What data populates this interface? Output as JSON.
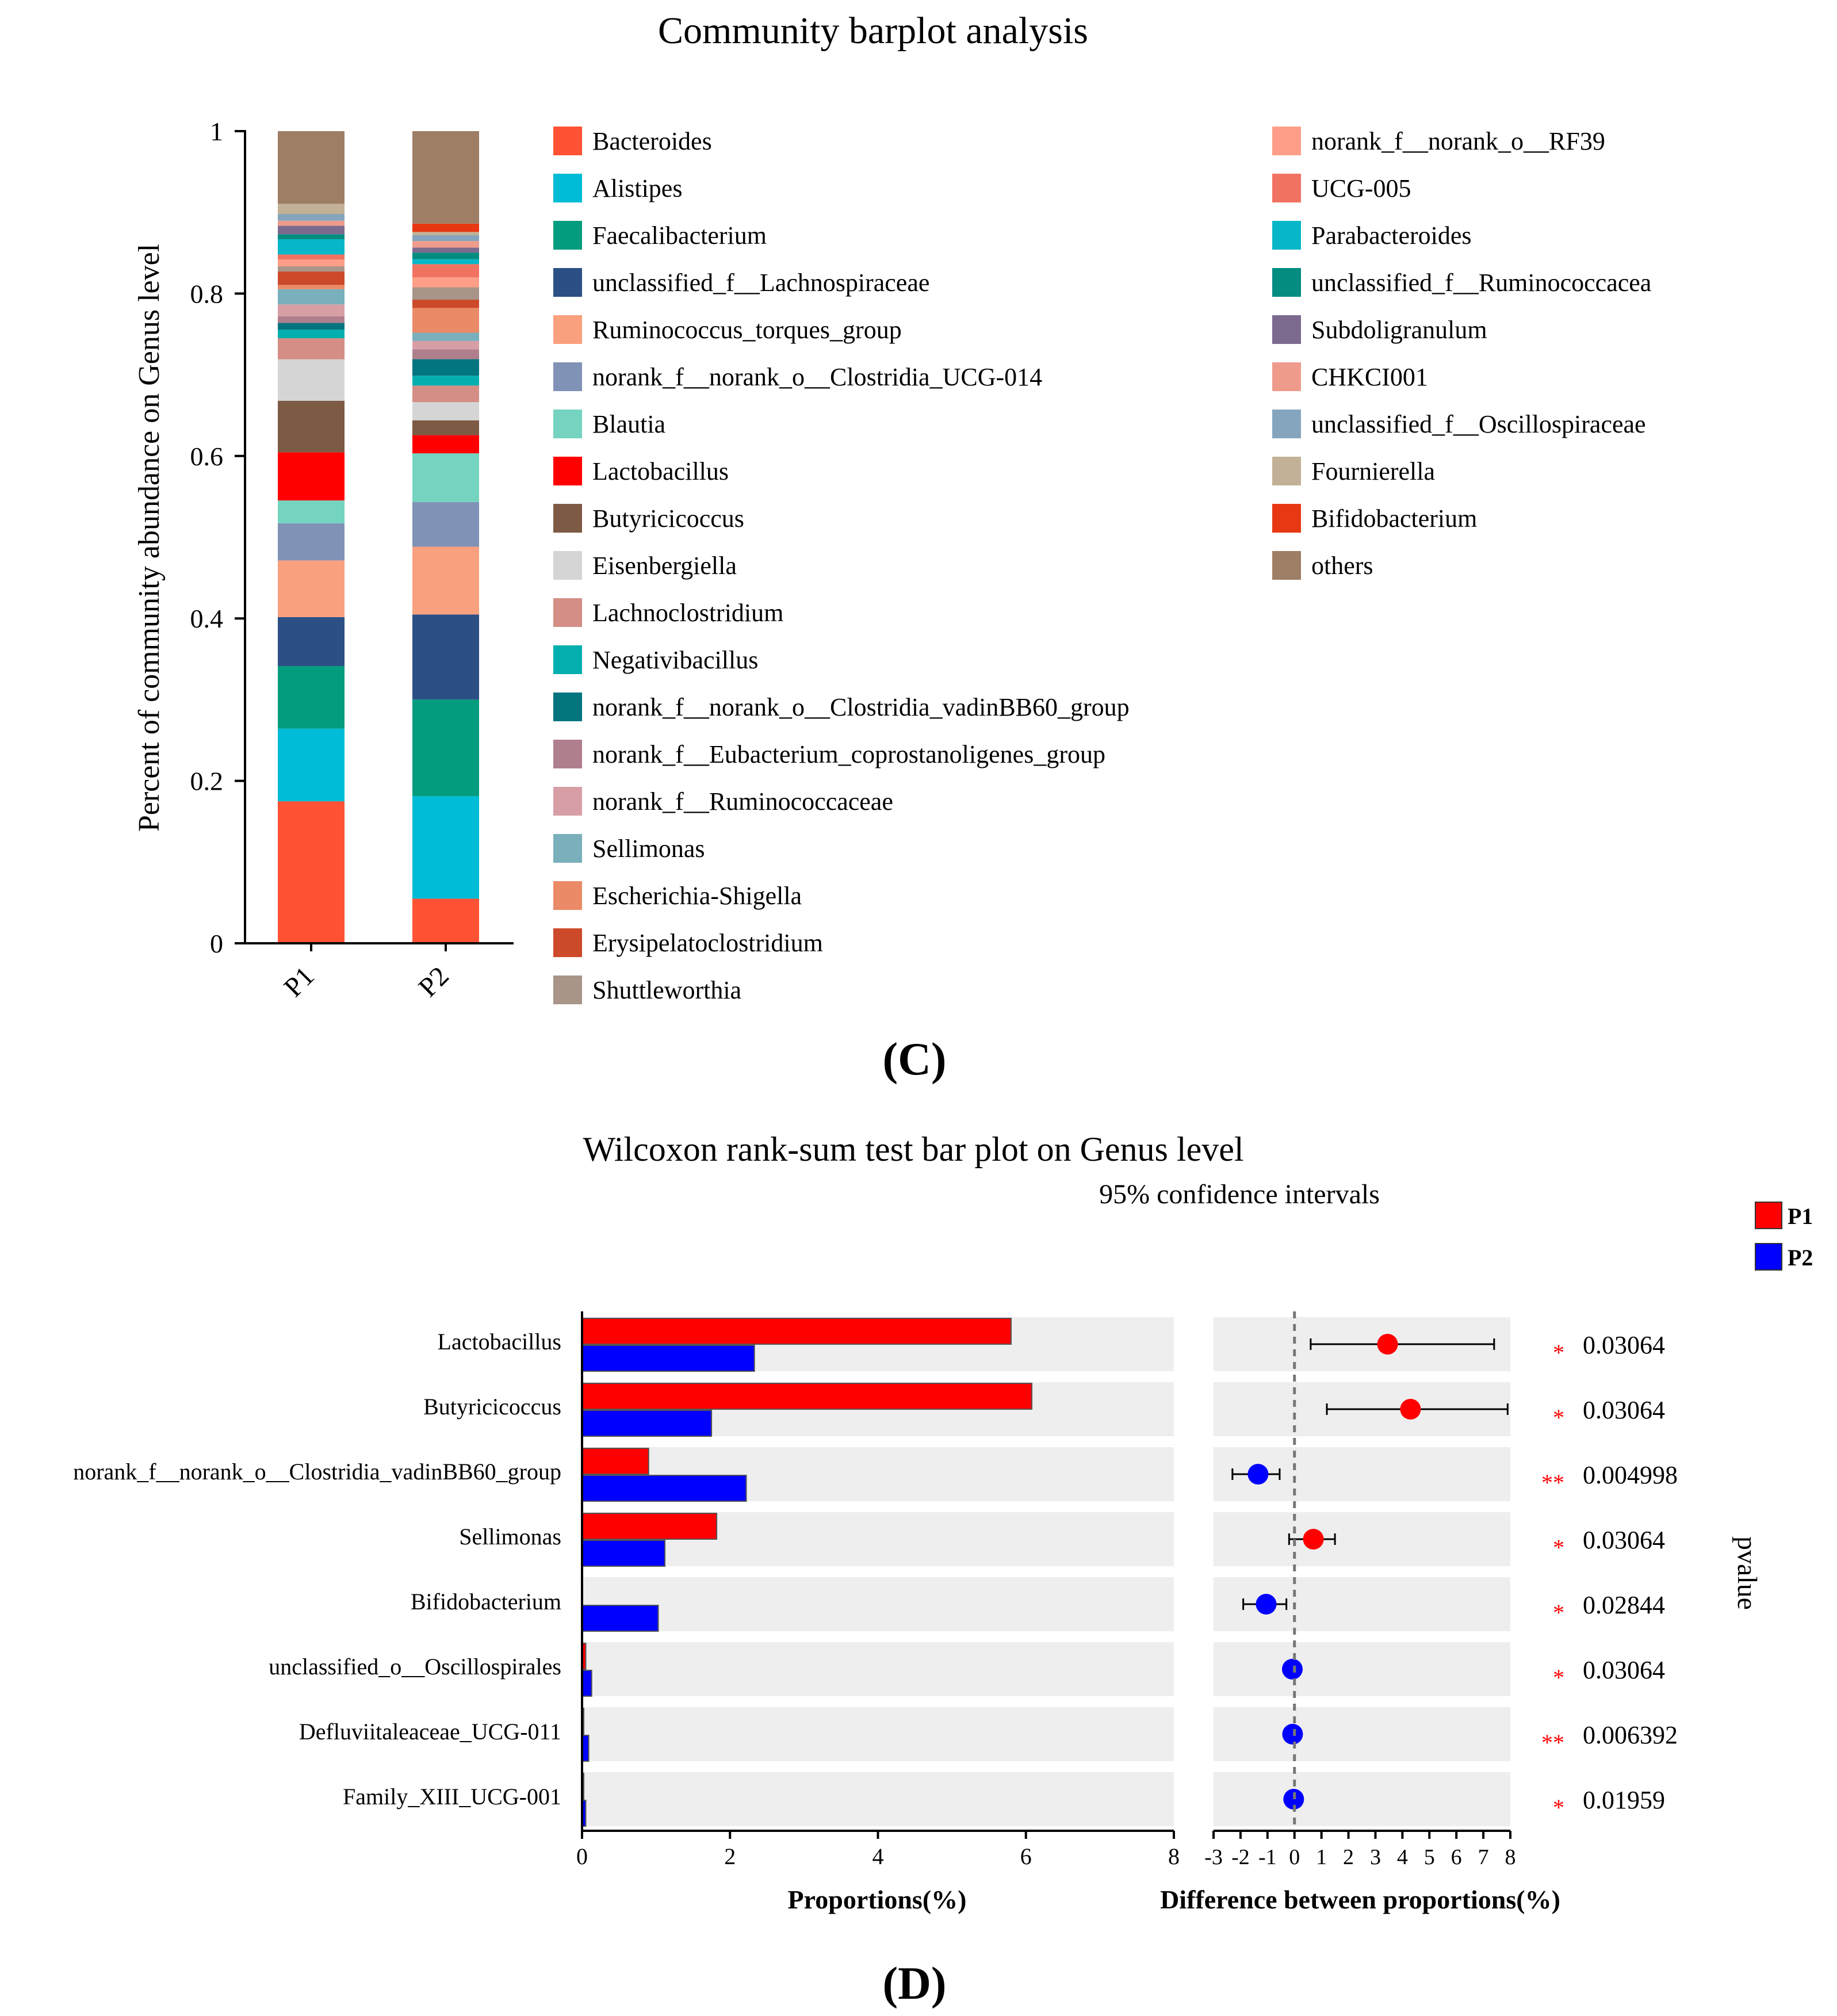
{
  "chart_data": [
    {
      "type": "bar",
      "stacked": true,
      "title": "Community barplot analysis",
      "xlabel": "",
      "ylabel": "Percent of community abundance on Genus level",
      "ylim": [
        0,
        1
      ],
      "yticks": [
        "0",
        "0.2",
        "0.4",
        "0.6",
        "0.8",
        "1"
      ],
      "ytick_values": [
        0,
        0.2,
        0.4,
        0.6,
        0.8,
        1
      ],
      "categories": [
        "P1",
        "P2"
      ],
      "panel_label": "(C)",
      "series": [
        {
          "name": "Bacteroides",
          "color": "#FF5234",
          "values": [
            0.168,
            0.054
          ]
        },
        {
          "name": "Alistipes",
          "color": "#00BCD6",
          "values": [
            0.086,
            0.124
          ]
        },
        {
          "name": "Faecalibacterium",
          "color": "#049C7F",
          "values": [
            0.074,
            0.117
          ]
        },
        {
          "name": "unclassified_f__Lachnospiraceae",
          "color": "#2C5085",
          "values": [
            0.058,
            0.103
          ]
        },
        {
          "name": "Ruminococcus_torques_group",
          "color": "#F9A07F",
          "values": [
            0.067,
            0.082
          ]
        },
        {
          "name": "norank_f__norank_o__Clostridia_UCG-014",
          "color": "#8192B7",
          "values": [
            0.044,
            0.054
          ]
        },
        {
          "name": "Blautia",
          "color": "#74D4C0",
          "values": [
            0.027,
            0.059
          ]
        },
        {
          "name": "Lactobacillus",
          "color": "#FF0000",
          "values": [
            0.057,
            0.022
          ]
        },
        {
          "name": "Butyricicoccus",
          "color": "#7D5A44",
          "values": [
            0.061,
            0.018
          ]
        },
        {
          "name": "Eisenbergiella",
          "color": "#D5D5D5",
          "values": [
            0.049,
            0.022
          ]
        },
        {
          "name": "Lachnoclostridium",
          "color": "#D48E85",
          "values": [
            0.025,
            0.02
          ]
        },
        {
          "name": "Negativibacillus",
          "color": "#04AFAF",
          "values": [
            0.01,
            0.012
          ]
        },
        {
          "name": "norank_f__norank_o__Clostridia_vadinBB60_group",
          "color": "#03757F",
          "values": [
            0.008,
            0.02
          ]
        },
        {
          "name": "norank_f__Eubacterium_coprostanoligenes_group",
          "color": "#AF7F8E",
          "values": [
            0.008,
            0.012
          ]
        },
        {
          "name": "norank_f__Ruminococcaceae",
          "color": "#D79EA6",
          "values": [
            0.014,
            0.01
          ]
        },
        {
          "name": "Sellimonas",
          "color": "#7AAFBC",
          "values": [
            0.018,
            0.01
          ]
        },
        {
          "name": "Escherichia-Shigella",
          "color": "#EA8A67",
          "values": [
            0.005,
            0.03
          ]
        },
        {
          "name": "Erysipelatoclostridium",
          "color": "#CC4A2A",
          "values": [
            0.016,
            0.01
          ]
        },
        {
          "name": "Shuttleworthia",
          "color": "#A89488",
          "values": [
            0.006,
            0.015
          ]
        },
        {
          "name": "norank_f__norank_o__RF39",
          "color": "#FF9E88",
          "values": [
            0.008,
            0.012
          ]
        },
        {
          "name": "UCG-005",
          "color": "#F27261",
          "values": [
            0.006,
            0.016
          ]
        },
        {
          "name": "Parabacteroides",
          "color": "#07B7C7",
          "values": [
            0.018,
            0.006
          ]
        },
        {
          "name": "unclassified_f__Ruminococcacea",
          "color": "#038C80",
          "values": [
            0.006,
            0.008
          ]
        },
        {
          "name": "Subdoligranulum",
          "color": "#7B6A8E",
          "values": [
            0.01,
            0.006
          ]
        },
        {
          "name": "CHKCI001",
          "color": "#EF9B8C",
          "values": [
            0.006,
            0.008
          ]
        },
        {
          "name": "unclassified_f__Oscillospiraceae",
          "color": "#85A5BE",
          "values": [
            0.008,
            0.007
          ]
        },
        {
          "name": "Fournierella",
          "color": "#C2B196",
          "values": [
            0.012,
            0.004
          ]
        },
        {
          "name": "Bifidobacterium",
          "color": "#E73813",
          "values": [
            0,
            0.01
          ]
        },
        {
          "name": "others",
          "color": "#9F7E66",
          "values": [
            0.086,
            0.112
          ]
        }
      ]
    },
    {
      "type": "bar",
      "orientation": "horizontal",
      "title": "Wilcoxon rank-sum test bar plot on Genus level",
      "xlabel": "Proportions(%)",
      "ylabel": "",
      "xlim": [
        0,
        8
      ],
      "xticks": [
        "0",
        "2",
        "4",
        "6",
        "8"
      ],
      "xtick_values": [
        0,
        2,
        4,
        6,
        8
      ],
      "categories": [
        "Lactobacillus",
        "Butyricicoccus",
        "norank_f__norank_o__Clostridia_vadinBB60_group",
        "Sellimonas",
        "Bifidobacterium",
        "unclassified_o__Oscillospirales",
        "Defluviitaleaceae_UCG-011",
        "Family_XIII_UCG-001"
      ],
      "series": [
        {
          "name": "P1",
          "color": "#FF0000",
          "values": [
            5.8,
            6.08,
            0.9,
            1.82,
            0.0,
            0.05,
            0.01,
            0.01
          ]
        },
        {
          "name": "P2",
          "color": "#0000FF",
          "values": [
            2.33,
            1.75,
            2.22,
            1.12,
            1.03,
            0.13,
            0.09,
            0.05
          ]
        }
      ],
      "panel_label": "(D)"
    },
    {
      "type": "scatter",
      "title": "95% confidence intervals",
      "xlabel": "Difference between proportions(%)",
      "ylabel": "pvalue",
      "xlim": [
        -3,
        8
      ],
      "xticks": [
        "-3",
        "-2",
        "-1",
        "0",
        "1",
        "2",
        "3",
        "4",
        "5",
        "6",
        "7",
        "8"
      ],
      "xtick_values": [
        -3,
        -2,
        -1,
        0,
        1,
        2,
        3,
        4,
        5,
        6,
        7,
        8
      ],
      "categories": [
        "Lactobacillus",
        "Butyricicoccus",
        "norank_f__norank_o__Clostridia_vadinBB60_group",
        "Sellimonas",
        "Bifidobacterium",
        "unclassified_o__Oscillospirales",
        "Defluviitaleaceae_UCG-011",
        "Family_XIII_UCG-001"
      ],
      "difference": [
        3.45,
        4.3,
        -1.35,
        0.7,
        -1.05,
        -0.08,
        -0.07,
        -0.03
      ],
      "ci_low": [
        0.6,
        1.2,
        -2.3,
        -0.2,
        -1.9,
        -0.08,
        -0.07,
        -0.03
      ],
      "ci_high": [
        7.4,
        7.9,
        -0.55,
        1.5,
        -0.3,
        -0.08,
        -0.07,
        -0.03
      ],
      "point_colors": [
        "#FF0000",
        "#FF0000",
        "#0000FF",
        "#FF0000",
        "#0000FF",
        "#0000FF",
        "#0000FF",
        "#0000FF"
      ],
      "significance": [
        "*",
        "*",
        "**",
        "*",
        "*",
        "*",
        "**",
        "*"
      ],
      "pvalues": [
        "0.03064",
        "0.03064",
        "0.004998",
        "0.03064",
        "0.02844",
        "0.03064",
        "0.006392",
        "0.01959"
      ],
      "legend": [
        {
          "name": "P1",
          "color": "#FF0000"
        },
        {
          "name": "P2",
          "color": "#0000FF"
        }
      ]
    }
  ]
}
